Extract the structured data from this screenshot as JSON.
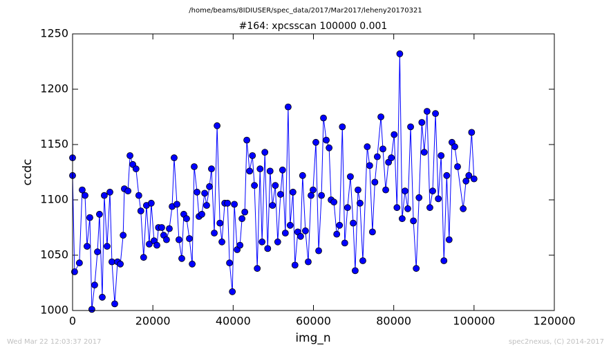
{
  "header": "/home/beams/8IDIUSER/spec_data/2017/Mar2017/leheny20170321",
  "footer_left": "Wed Mar 22 12:03:37 2017",
  "footer_right": "spec2nexus, (C) 2014-2017",
  "chart_data": {
    "type": "line",
    "title": "#164: xpcsscan 100000 0.001",
    "x_label": "img_n",
    "y_label": "ccdc",
    "xlim": [
      0,
      120000
    ],
    "xticks": [
      0,
      20000,
      40000,
      60000,
      80000,
      100000,
      120000
    ],
    "ylim": [
      1000,
      1250
    ],
    "yticks": [
      1000,
      1050,
      1100,
      1150,
      1200,
      1250
    ],
    "grid": false,
    "series": [
      {
        "color": "#0000ff",
        "marker_color": "#0000ff",
        "x": [
          0,
          0,
          500,
          1700,
          2400,
          3100,
          3600,
          4300,
          4800,
          5500,
          6200,
          6700,
          7400,
          7900,
          8600,
          9300,
          9800,
          10500,
          11200,
          11900,
          12600,
          12900,
          13800,
          14300,
          15000,
          15800,
          16500,
          17000,
          17700,
          18400,
          19100,
          19600,
          20300,
          21000,
          21400,
          22200,
          22700,
          23400,
          24100,
          24800,
          25300,
          26000,
          26500,
          27200,
          27700,
          28400,
          29100,
          29800,
          30300,
          31000,
          31500,
          32200,
          32900,
          33400,
          34100,
          34600,
          35300,
          36000,
          36700,
          37200,
          37900,
          38600,
          39100,
          39800,
          40300,
          41000,
          41700,
          42200,
          42900,
          43400,
          44100,
          44800,
          45300,
          46000,
          46700,
          47200,
          47900,
          48600,
          49200,
          49800,
          50500,
          51100,
          51800,
          52300,
          53000,
          53700,
          54200,
          54900,
          55400,
          56100,
          56800,
          57300,
          58000,
          58700,
          59400,
          59900,
          60600,
          61300,
          62000,
          62500,
          63200,
          63900,
          64400,
          65100,
          65800,
          66500,
          67200,
          67800,
          68500,
          69200,
          69900,
          70400,
          71100,
          71600,
          72300,
          73400,
          74000,
          74700,
          75300,
          75900,
          76800,
          77300,
          78000,
          78700,
          79400,
          80100,
          80800,
          81500,
          82100,
          82800,
          83500,
          84200,
          84900,
          85600,
          86300,
          87000,
          87600,
          88300,
          89000,
          89700,
          90400,
          91100,
          91800,
          92500,
          93200,
          93800,
          94500,
          95200,
          95900,
          97300,
          98000,
          98700,
          99400,
          100000
        ],
        "values": [
          1138,
          1122,
          1035,
          1043,
          1109,
          1104,
          1058,
          1084,
          1001,
          1023,
          1053,
          1087,
          1012,
          1104,
          1058,
          1107,
          1044,
          1006,
          1044,
          1042,
          1068,
          1110,
          1108,
          1140,
          1132,
          1128,
          1104,
          1090,
          1048,
          1095,
          1060,
          1097,
          1063,
          1059,
          1075,
          1075,
          1068,
          1064,
          1074,
          1094,
          1138,
          1096,
          1064,
          1047,
          1087,
          1083,
          1065,
          1042,
          1130,
          1107,
          1085,
          1087,
          1106,
          1095,
          1112,
          1128,
          1070,
          1167,
          1079,
          1062,
          1097,
          1097,
          1043,
          1017,
          1096,
          1055,
          1059,
          1083,
          1089,
          1154,
          1126,
          1140,
          1113,
          1038,
          1128,
          1062,
          1143,
          1056,
          1126,
          1095,
          1113,
          1062,
          1105,
          1127,
          1070,
          1184,
          1077,
          1107,
          1041,
          1071,
          1067,
          1122,
          1072,
          1044,
          1104,
          1109,
          1152,
          1054,
          1104,
          1174,
          1154,
          1147,
          1100,
          1098,
          1069,
          1077,
          1166,
          1061,
          1093,
          1121,
          1079,
          1036,
          1109,
          1097,
          1045,
          1148,
          1131,
          1071,
          1116,
          1139,
          1175,
          1146,
          1109,
          1134,
          1138,
          1159,
          1093,
          1232,
          1083,
          1108,
          1092,
          1166,
          1081,
          1038,
          1102,
          1170,
          1143,
          1180,
          1093,
          1108,
          1178,
          1101,
          1140,
          1045,
          1122,
          1064,
          1152,
          1148,
          1130,
          1092,
          1117,
          1122,
          1161,
          1119
        ]
      }
    ]
  }
}
